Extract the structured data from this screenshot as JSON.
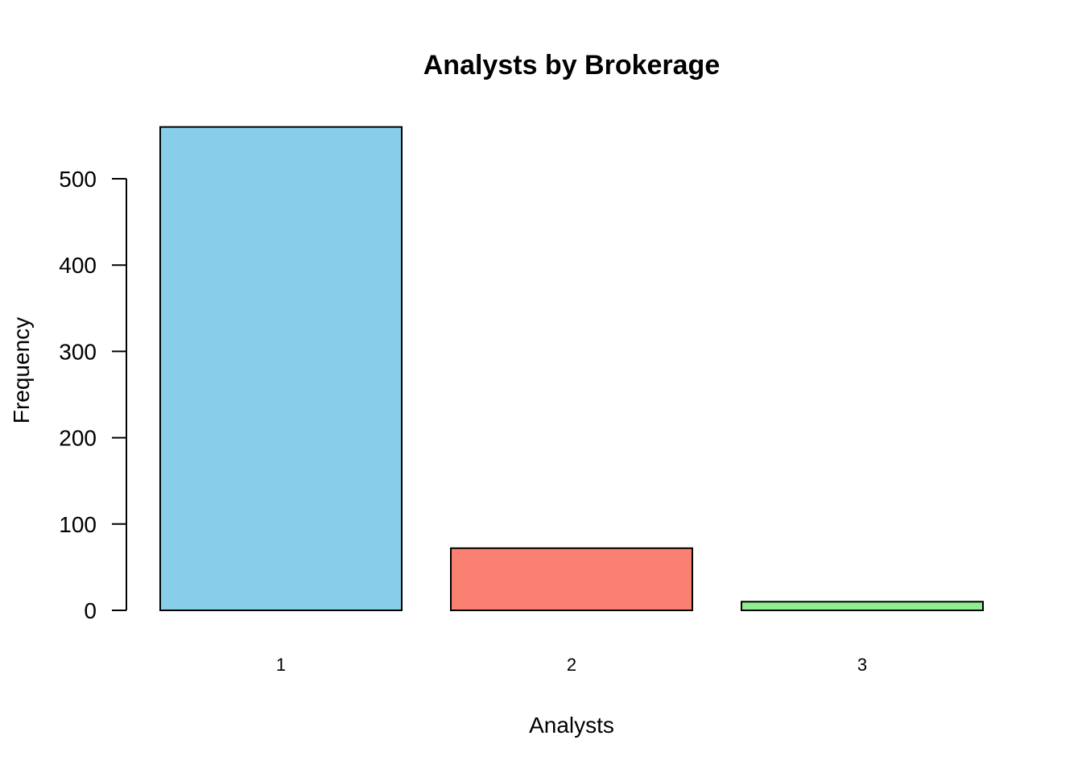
{
  "chart_data": {
    "type": "bar",
    "title": "Analysts by Brokerage",
    "xlabel": "Analysts",
    "ylabel": "Frequency",
    "categories": [
      "1",
      "2",
      "3"
    ],
    "values": [
      560,
      72,
      10
    ],
    "colors": [
      "#87CEEB",
      "#FA8072",
      "#90EE90"
    ],
    "ylim": [
      0,
      560
    ],
    "yticks": [
      0,
      100,
      200,
      300,
      400,
      500
    ],
    "grid": false,
    "legend": false
  }
}
